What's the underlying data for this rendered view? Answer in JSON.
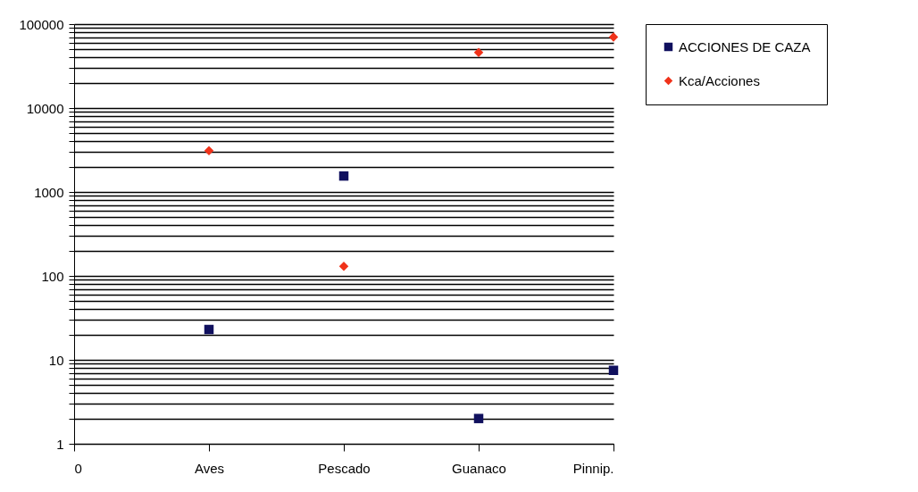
{
  "chart_data": {
    "type": "scatter",
    "categories": [
      "0",
      "Aves",
      "Pescado",
      "Guanaco",
      "Pinnip."
    ],
    "series": [
      {
        "name": "ACCIONES DE CAZA",
        "color": "#10105e",
        "marker": "square",
        "values": [
          null,
          23,
          1550,
          2,
          7.5
        ]
      },
      {
        "name": "Kca/Acciones",
        "color": "#f0321a",
        "marker": "diamond",
        "values": [
          null,
          3100,
          130,
          46000,
          70000
        ]
      }
    ],
    "log": true,
    "ylim": [
      1,
      100000
    ],
    "yticks": [
      1,
      {
        "value": 2,
        "label": null
      },
      {
        "value": 3,
        "label": null
      },
      {
        "value": 4,
        "label": null
      },
      {
        "value": 5,
        "label": null
      },
      {
        "value": 6,
        "label": null
      },
      {
        "value": 7,
        "label": null
      },
      {
        "value": 8,
        "label": null
      },
      {
        "value": 9,
        "label": null
      },
      10,
      {
        "value": 20,
        "label": null
      },
      {
        "value": 30,
        "label": null
      },
      {
        "value": 40,
        "label": null
      },
      {
        "value": 50,
        "label": null
      },
      {
        "value": 60,
        "label": null
      },
      {
        "value": 70,
        "label": null
      },
      {
        "value": 80,
        "label": null
      },
      {
        "value": 90,
        "label": null
      },
      100,
      {
        "value": 200,
        "label": null
      },
      {
        "value": 300,
        "label": null
      },
      {
        "value": 400,
        "label": null
      },
      {
        "value": 500,
        "label": null
      },
      {
        "value": 600,
        "label": null
      },
      {
        "value": 700,
        "label": null
      },
      {
        "value": 800,
        "label": null
      },
      {
        "value": 900,
        "label": null
      },
      1000,
      {
        "value": 2000,
        "label": null
      },
      {
        "value": 3000,
        "label": null
      },
      {
        "value": 4000,
        "label": null
      },
      {
        "value": 5000,
        "label": null
      },
      {
        "value": 6000,
        "label": null
      },
      {
        "value": 7000,
        "label": null
      },
      {
        "value": 8000,
        "label": null
      },
      {
        "value": 9000,
        "label": null
      },
      10000,
      {
        "value": 20000,
        "label": null
      },
      {
        "value": 30000,
        "label": null
      },
      {
        "value": 40000,
        "label": null
      },
      {
        "value": 50000,
        "label": null
      },
      {
        "value": 60000,
        "label": null
      },
      {
        "value": 70000,
        "label": null
      },
      {
        "value": 80000,
        "label": null
      },
      {
        "value": 90000,
        "label": null
      },
      100000
    ],
    "grid": "y",
    "legend": "right"
  }
}
